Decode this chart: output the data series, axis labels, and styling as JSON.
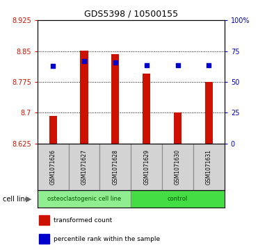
{
  "title": "GDS5398 / 10500155",
  "samples": [
    "GSM1071626",
    "GSM1071627",
    "GSM1071628",
    "GSM1071629",
    "GSM1071630",
    "GSM1071631"
  ],
  "bar_values": [
    8.693,
    8.851,
    8.843,
    8.795,
    8.7,
    8.775
  ],
  "bar_base": 8.625,
  "percentile_values": [
    8.813,
    8.826,
    8.822,
    8.815,
    8.816,
    8.815
  ],
  "ylim_left": [
    8.625,
    8.925
  ],
  "yleft_ticks": [
    8.625,
    8.7,
    8.775,
    8.85,
    8.925
  ],
  "yleft_tick_labels": [
    "8.625",
    "8.7",
    "8.775",
    "8.85",
    "8.925"
  ],
  "yright_ticks": [
    0,
    25,
    50,
    75,
    100
  ],
  "yright_labels": [
    "0",
    "25",
    "50",
    "75",
    "100%"
  ],
  "bar_color": "#cc1100",
  "dot_color": "#0000cc",
  "groups": [
    {
      "label": "osteoclastogenic cell line",
      "indices": [
        0,
        1,
        2
      ],
      "color": "#90ee90"
    },
    {
      "label": "control",
      "indices": [
        3,
        4,
        5
      ],
      "color": "#44dd44"
    }
  ],
  "legend_items": [
    {
      "label": "transformed count",
      "color": "#cc1100"
    },
    {
      "label": "percentile rank within the sample",
      "color": "#0000cc"
    }
  ],
  "tick_color_left": "#cc1100",
  "tick_color_right": "#0000bb",
  "cell_line_label": "cell line"
}
